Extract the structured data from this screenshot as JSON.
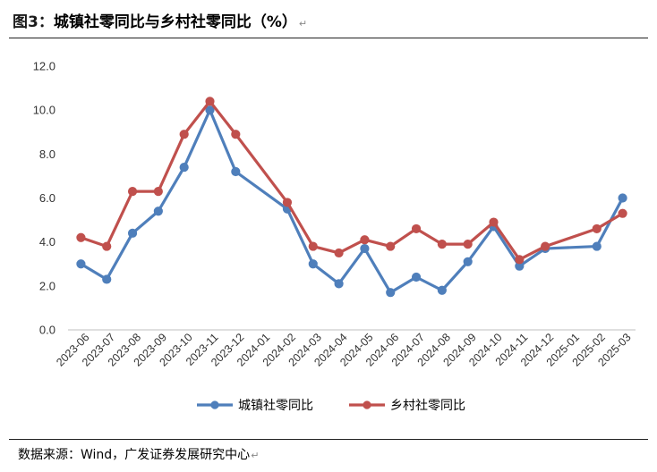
{
  "header": {
    "fig_label": "图3：",
    "title": "城镇社零同比与乡村社零同比（%）",
    "mark": "↵"
  },
  "footer": {
    "source": "数据来源：Wind，广发证券发展研究中心",
    "mark": "↵"
  },
  "colors": {
    "urban": "#4f7fbb",
    "rural": "#c0504d"
  },
  "chart_data": {
    "type": "line",
    "title": "城镇社零同比与乡村社零同比（%）",
    "categories": [
      "2023-06",
      "2023-07",
      "2023-08",
      "2023-09",
      "2023-10",
      "2023-11",
      "2023-12",
      "2024-01",
      "2024-02",
      "2024-03",
      "2024-04",
      "2024-05",
      "2024-06",
      "2024-07",
      "2024-08",
      "2024-09",
      "2024-10",
      "2024-11",
      "2024-12",
      "2025-01",
      "2025-02",
      "2025-03"
    ],
    "ylim": [
      0,
      12
    ],
    "yticks": [
      "0.0",
      "2.0",
      "4.0",
      "6.0",
      "8.0",
      "10.0",
      "12.0"
    ],
    "grid": false,
    "legend_position": "bottom",
    "series": [
      {
        "name": "城镇社零同比",
        "color": "#4f7fbb",
        "values": [
          3.0,
          2.3,
          4.4,
          5.4,
          7.4,
          10.0,
          7.2,
          null,
          5.5,
          3.0,
          2.1,
          3.7,
          1.7,
          2.4,
          1.8,
          3.1,
          4.7,
          2.9,
          3.7,
          null,
          3.8,
          6.0
        ]
      },
      {
        "name": "乡村社零同比",
        "color": "#c0504d",
        "values": [
          4.2,
          3.8,
          6.3,
          6.3,
          8.9,
          10.4,
          8.9,
          null,
          5.8,
          3.8,
          3.5,
          4.1,
          3.8,
          4.6,
          3.9,
          3.9,
          4.9,
          3.2,
          3.8,
          null,
          4.6,
          5.3
        ]
      }
    ]
  }
}
